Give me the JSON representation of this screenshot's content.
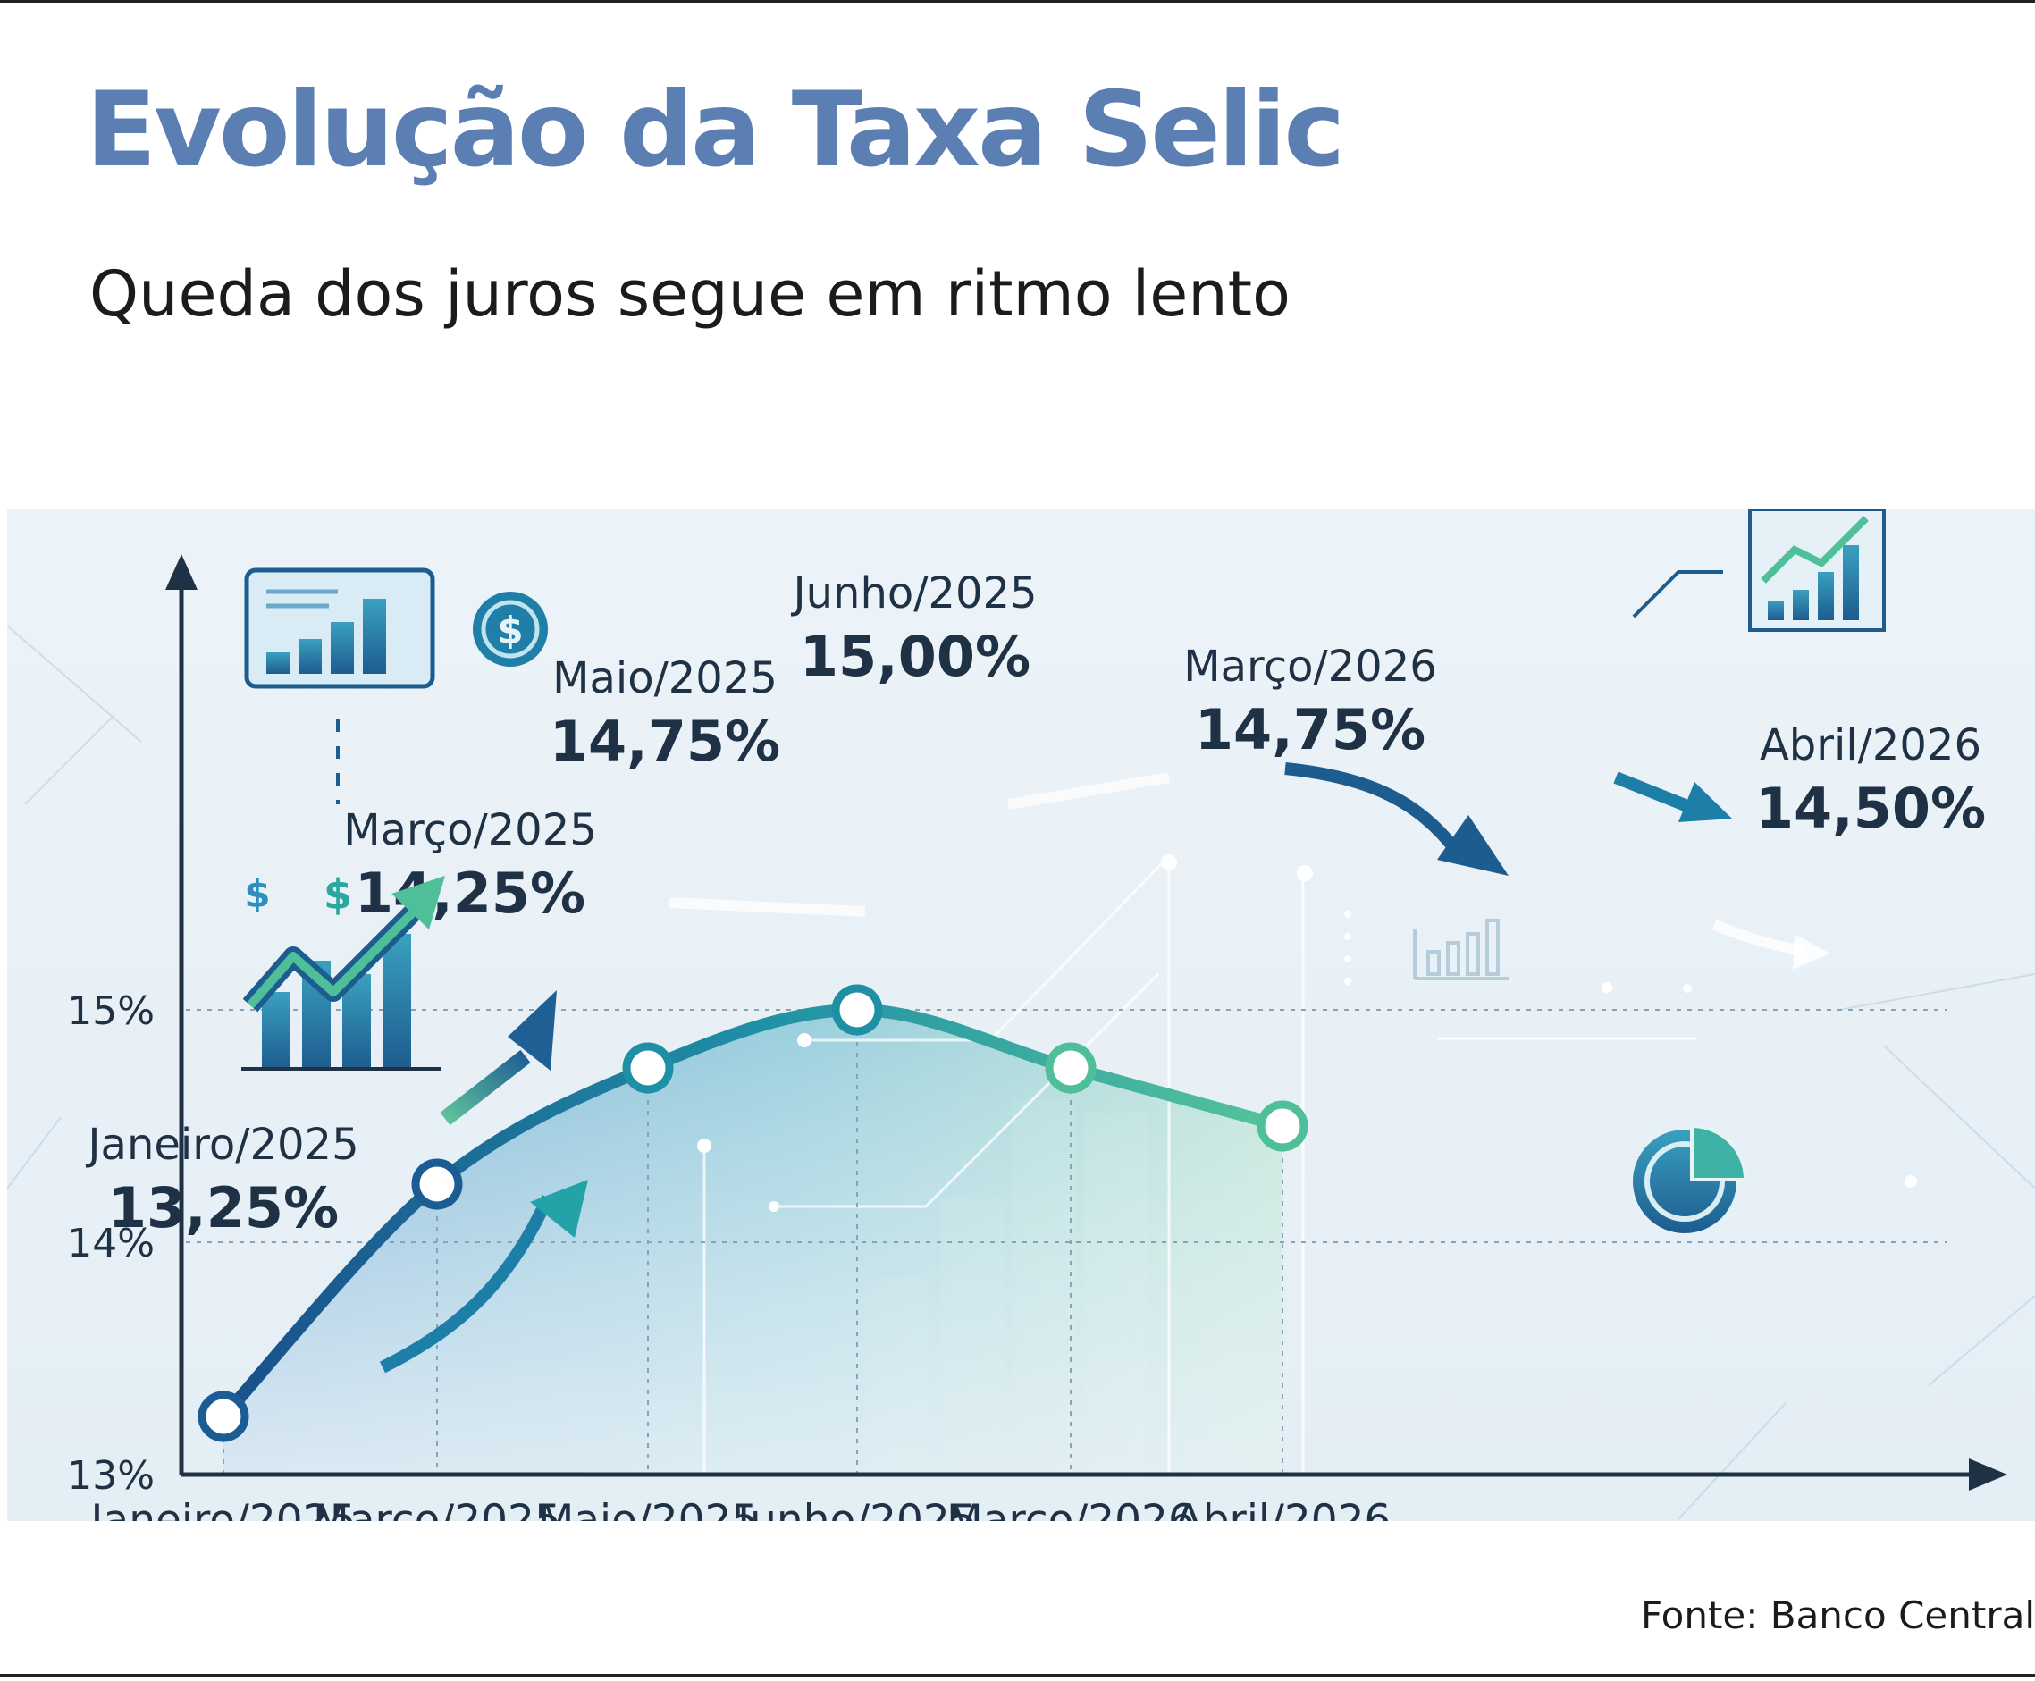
{
  "title": "Evolução da Taxa Selic",
  "subtitle": "Queda dos juros segue em ritmo lento",
  "source": "Fonte: Banco Central",
  "colors": {
    "title": "#5b7fb3",
    "line_start": "#1a5c93",
    "line_mid": "#1f8fa6",
    "line_end": "#4fbf9a",
    "axis": "#1f3144"
  },
  "icons": [
    "bar-chart-icon",
    "dollar-coin-icon",
    "growth-arrow-icon",
    "dollar-sign-icon",
    "pie-chart-icon",
    "small-bar-chart-icon"
  ],
  "chart_data": {
    "type": "line",
    "categories": [
      "Janeiro/2025",
      "Março/2025",
      "Maio/2025",
      "Junho/2025",
      "Março/2026",
      "Abril/2026"
    ],
    "values": [
      13.25,
      14.25,
      14.75,
      15.0,
      14.75,
      14.5
    ],
    "point_labels": [
      "13,25%",
      "14,25%",
      "14,75%",
      "15,00%",
      "14,75%",
      "14,50%"
    ],
    "y_ticks": [
      13,
      14,
      15
    ],
    "y_tick_labels": [
      "13%",
      "14%",
      "15%"
    ],
    "ylim": [
      13,
      15.9
    ],
    "grid": "dotted horizontal lines at 14% and 15%, dotted vertical drop lines at each point",
    "legend": "none"
  }
}
